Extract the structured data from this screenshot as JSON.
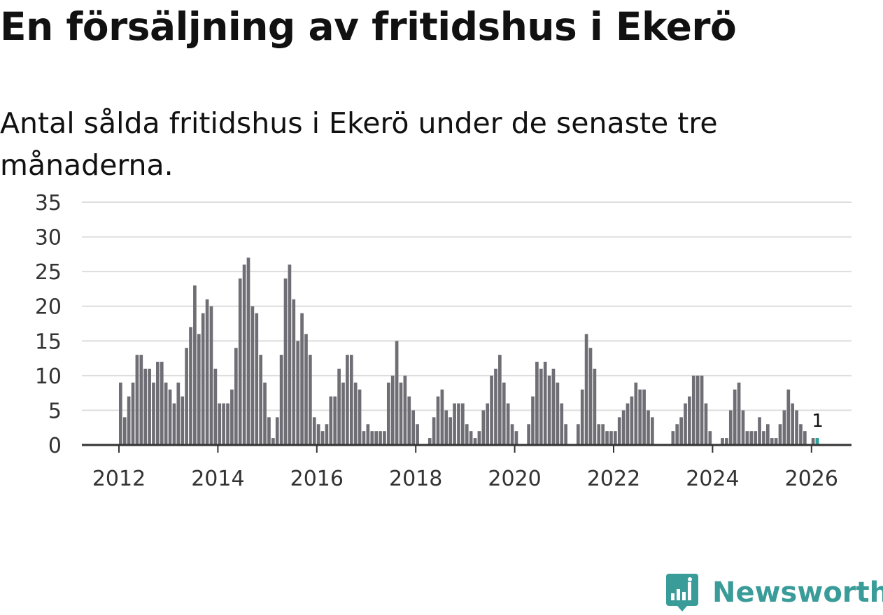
{
  "title": "En försäljning av fritidshus i Ekerö",
  "subtitle": "Antal sålda fritidshus i Ekerö under de senaste tre månaderna.",
  "brand": {
    "name": "Newsworthy",
    "icon": "newsworthy-logo-icon"
  },
  "colors": {
    "bar": "#6f6e75",
    "highlight": "#2aa39a",
    "brand": "#3a9c99",
    "grid": "#dddddd",
    "axis": "#333333"
  },
  "chart_data": {
    "type": "bar",
    "title": "En försäljning av fritidshus i Ekerö",
    "subtitle": "Antal sålda fritidshus i Ekerö under de senaste tre månaderna.",
    "xlabel": "",
    "ylabel": "",
    "ylim": [
      0,
      35
    ],
    "yticks": [
      0,
      5,
      10,
      15,
      20,
      25,
      30,
      35
    ],
    "xticks": [
      "2012",
      "2014",
      "2016",
      "2018",
      "2020",
      "2022",
      "2024",
      "2026"
    ],
    "grid": true,
    "start": "2012-01",
    "interval": "month",
    "values": [
      9,
      4,
      7,
      9,
      13,
      13,
      11,
      11,
      9,
      12,
      12,
      9,
      8,
      6,
      9,
      7,
      14,
      17,
      23,
      16,
      19,
      21,
      20,
      11,
      6,
      6,
      6,
      8,
      14,
      24,
      26,
      27,
      20,
      19,
      13,
      9,
      4,
      1,
      4,
      13,
      24,
      26,
      21,
      15,
      19,
      16,
      13,
      4,
      3,
      2,
      3,
      7,
      7,
      11,
      9,
      13,
      13,
      9,
      8,
      2,
      3,
      2,
      2,
      2,
      2,
      9,
      10,
      15,
      9,
      10,
      7,
      5,
      3,
      0,
      0,
      1,
      4,
      7,
      8,
      5,
      4,
      6,
      6,
      6,
      3,
      2,
      1,
      2,
      5,
      6,
      10,
      11,
      13,
      9,
      6,
      3,
      2,
      0,
      0,
      3,
      7,
      12,
      11,
      12,
      10,
      11,
      9,
      6,
      3,
      0,
      0,
      3,
      8,
      16,
      14,
      11,
      3,
      3,
      2,
      2,
      2,
      4,
      5,
      6,
      7,
      9,
      8,
      8,
      5,
      4,
      0,
      0,
      0,
      0,
      2,
      3,
      4,
      6,
      7,
      10,
      10,
      10,
      6,
      2,
      0,
      0,
      1,
      1,
      5,
      8,
      9,
      5,
      2,
      2,
      2,
      4,
      2,
      3,
      1,
      1,
      3,
      5,
      8,
      6,
      5,
      3,
      2,
      0,
      1,
      1
    ],
    "highlight": {
      "date": "2026-02",
      "value": 1,
      "label": "1"
    }
  }
}
